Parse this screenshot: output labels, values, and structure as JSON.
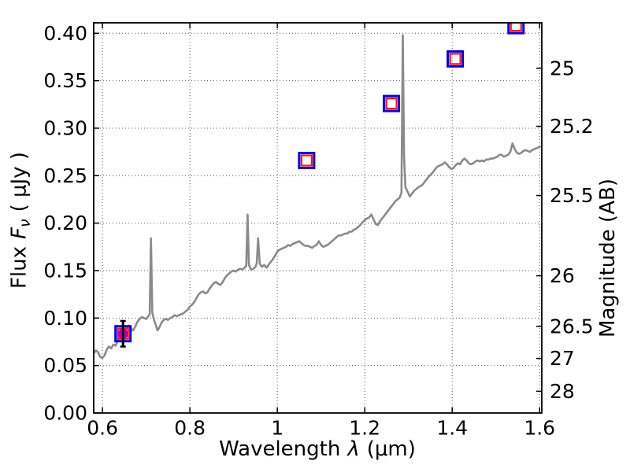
{
  "chart_data": {
    "type": "line+scatter",
    "title": "",
    "xlabel_word": "Wavelength",
    "xlabel_symbol": "λ",
    "xlabel_unit": "(μm)",
    "ylabel_left_word": "Flux",
    "ylabel_left_symbol": "F",
    "ylabel_left_sub": "ν",
    "ylabel_left_unit": "( μJy )",
    "ylabel_right": "Magnitude (AB)",
    "xlim": [
      0.58,
      1.605
    ],
    "ylim": [
      0.0,
      0.411
    ],
    "grid": "dotted",
    "legend": "none",
    "x_ticks": [
      {
        "v": 0.6,
        "label": "0.6"
      },
      {
        "v": 0.8,
        "label": "0.8"
      },
      {
        "v": 1.0,
        "label": "1"
      },
      {
        "v": 1.2,
        "label": "1.2"
      },
      {
        "v": 1.4,
        "label": "1.4"
      },
      {
        "v": 1.6,
        "label": "1.6"
      }
    ],
    "y_ticks_left": [
      {
        "v": 0.0,
        "label": "0.00"
      },
      {
        "v": 0.05,
        "label": "0.05"
      },
      {
        "v": 0.1,
        "label": "0.10"
      },
      {
        "v": 0.15,
        "label": "0.15"
      },
      {
        "v": 0.2,
        "label": "0.20"
      },
      {
        "v": 0.25,
        "label": "0.25"
      },
      {
        "v": 0.3,
        "label": "0.30"
      },
      {
        "v": 0.35,
        "label": "0.35"
      },
      {
        "v": 0.4,
        "label": "0.40"
      }
    ],
    "y_ticks_right": [
      {
        "label": "25",
        "flux": 0.3631
      },
      {
        "label": "25.2",
        "flux": 0.302
      },
      {
        "label": "25.5",
        "flux": 0.2291
      },
      {
        "label": "26",
        "flux": 0.1445
      },
      {
        "label": "26.5",
        "flux": 0.0912
      },
      {
        "label": "27",
        "flux": 0.0575
      },
      {
        "label": "28",
        "flux": 0.0229
      }
    ],
    "colors": {
      "spectrum": "#8a8a8a",
      "blue_square": "#0000ee",
      "red_square": "#ff1414",
      "magenta_circle": "#b400b4",
      "errorbar": "#000000",
      "axis": "#000000",
      "grid": "#555555"
    },
    "photometry_squares": [
      {
        "x": 0.647,
        "y": 0.0835
      },
      {
        "x": 1.067,
        "y": 0.266
      },
      {
        "x": 1.261,
        "y": 0.326
      },
      {
        "x": 1.407,
        "y": 0.373
      },
      {
        "x": 1.546,
        "y": 0.408
      }
    ],
    "photometry_circle": {
      "x": 0.647,
      "y": 0.0835,
      "yerr": 0.0135
    },
    "spectrum_points": [
      [
        0.58,
        0.063
      ],
      [
        0.585,
        0.066
      ],
      [
        0.59,
        0.064
      ],
      [
        0.595,
        0.059
      ],
      [
        0.6,
        0.058
      ],
      [
        0.605,
        0.061
      ],
      [
        0.61,
        0.067
      ],
      [
        0.615,
        0.07
      ],
      [
        0.62,
        0.068
      ],
      [
        0.625,
        0.072
      ],
      [
        0.63,
        0.071
      ],
      [
        0.635,
        0.076
      ],
      [
        0.64,
        0.081
      ],
      [
        0.645,
        0.084
      ],
      [
        0.65,
        0.087
      ],
      [
        0.655,
        0.09
      ],
      [
        0.66,
        0.092
      ],
      [
        0.665,
        0.089
      ],
      [
        0.67,
        0.087
      ],
      [
        0.675,
        0.091
      ],
      [
        0.68,
        0.096
      ],
      [
        0.685,
        0.099
      ],
      [
        0.69,
        0.101
      ],
      [
        0.695,
        0.1
      ],
      [
        0.7,
        0.099
      ],
      [
        0.705,
        0.102
      ],
      [
        0.708,
        0.104
      ],
      [
        0.711,
        0.184
      ],
      [
        0.714,
        0.106
      ],
      [
        0.718,
        0.098
      ],
      [
        0.722,
        0.093
      ],
      [
        0.726,
        0.087
      ],
      [
        0.73,
        0.09
      ],
      [
        0.735,
        0.095
      ],
      [
        0.74,
        0.098
      ],
      [
        0.745,
        0.099
      ],
      [
        0.75,
        0.098
      ],
      [
        0.755,
        0.1
      ],
      [
        0.76,
        0.101
      ],
      [
        0.765,
        0.103
      ],
      [
        0.77,
        0.102
      ],
      [
        0.775,
        0.103
      ],
      [
        0.78,
        0.104
      ],
      [
        0.785,
        0.105
      ],
      [
        0.79,
        0.107
      ],
      [
        0.795,
        0.109
      ],
      [
        0.8,
        0.112
      ],
      [
        0.805,
        0.114
      ],
      [
        0.81,
        0.117
      ],
      [
        0.815,
        0.121
      ],
      [
        0.82,
        0.125
      ],
      [
        0.825,
        0.127
      ],
      [
        0.83,
        0.128
      ],
      [
        0.835,
        0.126
      ],
      [
        0.84,
        0.127
      ],
      [
        0.845,
        0.131
      ],
      [
        0.85,
        0.134
      ],
      [
        0.855,
        0.137
      ],
      [
        0.86,
        0.138
      ],
      [
        0.865,
        0.136
      ],
      [
        0.87,
        0.135
      ],
      [
        0.875,
        0.138
      ],
      [
        0.88,
        0.142
      ],
      [
        0.885,
        0.145
      ],
      [
        0.89,
        0.147
      ],
      [
        0.895,
        0.149
      ],
      [
        0.9,
        0.15
      ],
      [
        0.905,
        0.149
      ],
      [
        0.91,
        0.151
      ],
      [
        0.915,
        0.152
      ],
      [
        0.92,
        0.151
      ],
      [
        0.925,
        0.153
      ],
      [
        0.929,
        0.155
      ],
      [
        0.932,
        0.209
      ],
      [
        0.935,
        0.156
      ],
      [
        0.94,
        0.151
      ],
      [
        0.945,
        0.152
      ],
      [
        0.95,
        0.154
      ],
      [
        0.953,
        0.158
      ],
      [
        0.956,
        0.184
      ],
      [
        0.96,
        0.157
      ],
      [
        0.965,
        0.154
      ],
      [
        0.97,
        0.156
      ],
      [
        0.975,
        0.153
      ],
      [
        0.98,
        0.156
      ],
      [
        0.985,
        0.159
      ],
      [
        0.99,
        0.162
      ],
      [
        0.995,
        0.166
      ],
      [
        1.0,
        0.17
      ],
      [
        1.005,
        0.172
      ],
      [
        1.01,
        0.173
      ],
      [
        1.015,
        0.174
      ],
      [
        1.02,
        0.175
      ],
      [
        1.025,
        0.177
      ],
      [
        1.03,
        0.176
      ],
      [
        1.035,
        0.178
      ],
      [
        1.04,
        0.179
      ],
      [
        1.045,
        0.18
      ],
      [
        1.05,
        0.181
      ],
      [
        1.055,
        0.179
      ],
      [
        1.06,
        0.177
      ],
      [
        1.065,
        0.176
      ],
      [
        1.07,
        0.176
      ],
      [
        1.075,
        0.175
      ],
      [
        1.08,
        0.174
      ],
      [
        1.085,
        0.176
      ],
      [
        1.09,
        0.177
      ],
      [
        1.095,
        0.181
      ],
      [
        1.1,
        0.177
      ],
      [
        1.105,
        0.175
      ],
      [
        1.11,
        0.176
      ],
      [
        1.115,
        0.177
      ],
      [
        1.12,
        0.179
      ],
      [
        1.125,
        0.181
      ],
      [
        1.13,
        0.183
      ],
      [
        1.135,
        0.185
      ],
      [
        1.14,
        0.187
      ],
      [
        1.145,
        0.187
      ],
      [
        1.15,
        0.188
      ],
      [
        1.155,
        0.189
      ],
      [
        1.16,
        0.189
      ],
      [
        1.165,
        0.191
      ],
      [
        1.17,
        0.191
      ],
      [
        1.175,
        0.193
      ],
      [
        1.18,
        0.194
      ],
      [
        1.185,
        0.196
      ],
      [
        1.19,
        0.198
      ],
      [
        1.195,
        0.201
      ],
      [
        1.2,
        0.203
      ],
      [
        1.205,
        0.205
      ],
      [
        1.21,
        0.206
      ],
      [
        1.215,
        0.209
      ],
      [
        1.22,
        0.204
      ],
      [
        1.225,
        0.199
      ],
      [
        1.23,
        0.198
      ],
      [
        1.235,
        0.202
      ],
      [
        1.24,
        0.205
      ],
      [
        1.245,
        0.208
      ],
      [
        1.25,
        0.211
      ],
      [
        1.255,
        0.214
      ],
      [
        1.26,
        0.217
      ],
      [
        1.265,
        0.22
      ],
      [
        1.27,
        0.223
      ],
      [
        1.275,
        0.225
      ],
      [
        1.28,
        0.227
      ],
      [
        1.284,
        0.232
      ],
      [
        1.287,
        0.398
      ],
      [
        1.29,
        0.27
      ],
      [
        1.293,
        0.238
      ],
      [
        1.298,
        0.233
      ],
      [
        1.303,
        0.228
      ],
      [
        1.308,
        0.231
      ],
      [
        1.313,
        0.234
      ],
      [
        1.318,
        0.236
      ],
      [
        1.323,
        0.238
      ],
      [
        1.328,
        0.239
      ],
      [
        1.333,
        0.241
      ],
      [
        1.338,
        0.244
      ],
      [
        1.343,
        0.247
      ],
      [
        1.348,
        0.25
      ],
      [
        1.353,
        0.252
      ],
      [
        1.358,
        0.255
      ],
      [
        1.363,
        0.258
      ],
      [
        1.368,
        0.26
      ],
      [
        1.373,
        0.261
      ],
      [
        1.378,
        0.262
      ],
      [
        1.383,
        0.264
      ],
      [
        1.388,
        0.262
      ],
      [
        1.393,
        0.259
      ],
      [
        1.398,
        0.257
      ],
      [
        1.403,
        0.258
      ],
      [
        1.408,
        0.261
      ],
      [
        1.413,
        0.263
      ],
      [
        1.418,
        0.262
      ],
      [
        1.423,
        0.266
      ],
      [
        1.428,
        0.268
      ],
      [
        1.433,
        0.266
      ],
      [
        1.438,
        0.263
      ],
      [
        1.443,
        0.262
      ],
      [
        1.448,
        0.263
      ],
      [
        1.453,
        0.265
      ],
      [
        1.458,
        0.266
      ],
      [
        1.463,
        0.265
      ],
      [
        1.468,
        0.266
      ],
      [
        1.473,
        0.265
      ],
      [
        1.478,
        0.267
      ],
      [
        1.483,
        0.267
      ],
      [
        1.488,
        0.268
      ],
      [
        1.493,
        0.268
      ],
      [
        1.498,
        0.269
      ],
      [
        1.503,
        0.27
      ],
      [
        1.508,
        0.272
      ],
      [
        1.513,
        0.272
      ],
      [
        1.518,
        0.27
      ],
      [
        1.523,
        0.271
      ],
      [
        1.528,
        0.272
      ],
      [
        1.533,
        0.275
      ],
      [
        1.538,
        0.284
      ],
      [
        1.543,
        0.278
      ],
      [
        1.548,
        0.274
      ],
      [
        1.553,
        0.273
      ],
      [
        1.558,
        0.274
      ],
      [
        1.563,
        0.276
      ],
      [
        1.568,
        0.277
      ],
      [
        1.573,
        0.276
      ],
      [
        1.578,
        0.275
      ],
      [
        1.583,
        0.277
      ],
      [
        1.588,
        0.278
      ],
      [
        1.593,
        0.279
      ],
      [
        1.598,
        0.28
      ],
      [
        1.603,
        0.281
      ]
    ]
  }
}
